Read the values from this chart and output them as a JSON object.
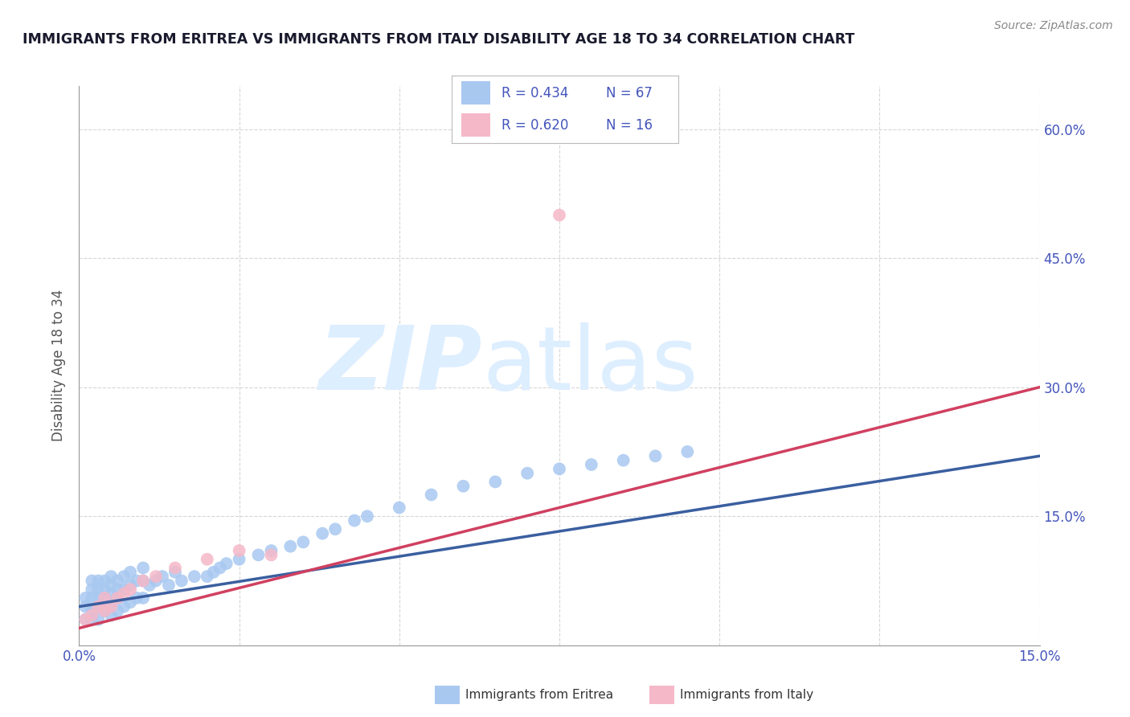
{
  "title": "IMMIGRANTS FROM ERITREA VS IMMIGRANTS FROM ITALY DISABILITY AGE 18 TO 34 CORRELATION CHART",
  "source": "Source: ZipAtlas.com",
  "ylabel": "Disability Age 18 to 34",
  "xlim": [
    0.0,
    0.15
  ],
  "ylim": [
    0.0,
    0.65
  ],
  "color_eritrea": "#a8c8f0",
  "color_italy": "#f5b8c8",
  "line_color_eritrea": "#3a5fa0",
  "line_color_italy": "#d04060",
  "watermark_color": "#ddeeff",
  "background_color": "#ffffff",
  "grid_color": "#cccccc",
  "title_color": "#1a1a2e",
  "label_color": "#4455bb",
  "tick_color": "#4455bb",
  "eritrea_x": [
    0.001,
    0.001,
    0.001,
    0.002,
    0.002,
    0.002,
    0.002,
    0.002,
    0.003,
    0.003,
    0.003,
    0.003,
    0.003,
    0.004,
    0.004,
    0.004,
    0.004,
    0.005,
    0.005,
    0.005,
    0.005,
    0.005,
    0.006,
    0.006,
    0.006,
    0.006,
    0.007,
    0.007,
    0.007,
    0.008,
    0.008,
    0.008,
    0.009,
    0.009,
    0.01,
    0.01,
    0.01,
    0.011,
    0.012,
    0.013,
    0.014,
    0.015,
    0.016,
    0.018,
    0.02,
    0.021,
    0.022,
    0.023,
    0.025,
    0.028,
    0.03,
    0.033,
    0.035,
    0.038,
    0.04,
    0.043,
    0.045,
    0.05,
    0.055,
    0.06,
    0.065,
    0.07,
    0.075,
    0.08,
    0.085,
    0.09,
    0.095
  ],
  "eritrea_y": [
    0.03,
    0.045,
    0.055,
    0.03,
    0.04,
    0.055,
    0.065,
    0.075,
    0.03,
    0.045,
    0.055,
    0.065,
    0.075,
    0.04,
    0.055,
    0.065,
    0.075,
    0.035,
    0.05,
    0.06,
    0.07,
    0.08,
    0.04,
    0.055,
    0.065,
    0.075,
    0.045,
    0.065,
    0.08,
    0.05,
    0.07,
    0.085,
    0.055,
    0.075,
    0.055,
    0.075,
    0.09,
    0.07,
    0.075,
    0.08,
    0.07,
    0.085,
    0.075,
    0.08,
    0.08,
    0.085,
    0.09,
    0.095,
    0.1,
    0.105,
    0.11,
    0.115,
    0.12,
    0.13,
    0.135,
    0.145,
    0.15,
    0.16,
    0.175,
    0.185,
    0.19,
    0.2,
    0.205,
    0.21,
    0.215,
    0.22,
    0.225
  ],
  "italy_x": [
    0.001,
    0.002,
    0.003,
    0.004,
    0.004,
    0.005,
    0.006,
    0.007,
    0.008,
    0.01,
    0.012,
    0.015,
    0.02,
    0.025,
    0.03,
    0.075
  ],
  "italy_y": [
    0.03,
    0.035,
    0.045,
    0.04,
    0.055,
    0.045,
    0.055,
    0.06,
    0.065,
    0.075,
    0.08,
    0.09,
    0.1,
    0.11,
    0.105,
    0.5
  ],
  "line_e_x0": 0.0,
  "line_e_y0": 0.045,
  "line_e_x1": 0.15,
  "line_e_y1": 0.22,
  "line_i_x0": 0.0,
  "line_i_y0": 0.02,
  "line_i_x1": 0.15,
  "line_i_y1": 0.3
}
